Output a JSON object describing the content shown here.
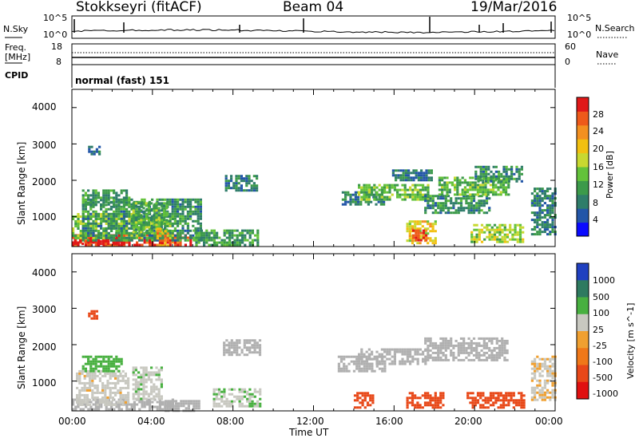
{
  "header": {
    "station": "Stokkseyri (fitACF)",
    "beam": "Beam 04",
    "date": "19/Mar/2016"
  },
  "status_panels": {
    "nsky_label": "N.Sky",
    "nsky_ticks": [
      "10^5",
      "10^0"
    ],
    "nsearch_label": "N.Search",
    "nsearch_ticks": [
      "10^5",
      "10^0"
    ],
    "freq_label_line1": "Freq.",
    "freq_label_line2": "[MHz]",
    "freq_ticks": [
      "18",
      "8"
    ],
    "nave_label": "Nave",
    "nave_ticks": [
      "60",
      "0"
    ],
    "cpid_label": "CPID",
    "cpid_value": "normal (fast) 151"
  },
  "axes": {
    "ylabel": "Slant Range [km]",
    "xlabel": "Time UT",
    "yticks": [
      "4000",
      "3000",
      "2000",
      "1000"
    ],
    "xticks": [
      "00:00",
      "04:00",
      "08:00",
      "12:00",
      "16:00",
      "20:00",
      "00:00"
    ]
  },
  "colorbars": {
    "power_label": "Power [dB]",
    "power_ticks": [
      "28",
      "24",
      "20",
      "16",
      "12",
      "8",
      "4"
    ],
    "velocity_label": "Velocity [m s^-1]",
    "velocity_ticks": [
      "1000",
      "500",
      "100",
      "25",
      "-25",
      "-100",
      "-500",
      "-1000"
    ]
  },
  "colors": {
    "power_scale": [
      "#0a0aff",
      "#2356a8",
      "#2f7d6a",
      "#3c9a4a",
      "#63c23a",
      "#c8d830",
      "#f2c010",
      "#f39020",
      "#ee5a1a",
      "#e01818"
    ],
    "velocity_scale": [
      "#2040c0",
      "#2e7a60",
      "#48b040",
      "#c8c8c0",
      "#f0a030",
      "#f07818",
      "#e84818",
      "#e01010"
    ],
    "ground_scatter": "#b0b0b0"
  },
  "chart_data": [
    {
      "type": "heatmap",
      "title": "Power",
      "xlabel": "Time UT",
      "ylabel": "Slant Range [km]",
      "xlim": [
        "00:00",
        "24:00"
      ],
      "ylim": [
        180,
        4500
      ],
      "colorbar_label": "Power [dB]",
      "colorbar_range": [
        0,
        30
      ],
      "regions": [
        {
          "t0": 0.0,
          "t1": 5.9,
          "r0": 200,
          "r1": 520,
          "value": 27
        },
        {
          "t0": 0.1,
          "t1": 2.6,
          "r0": 250,
          "r1": 420,
          "value": 29
        },
        {
          "t0": 0.0,
          "t1": 5.0,
          "r0": 400,
          "r1": 1100,
          "value": 14
        },
        {
          "t0": 0.5,
          "t1": 6.4,
          "r0": 380,
          "r1": 1500,
          "value": 9
        },
        {
          "t0": 0.5,
          "t1": 2.8,
          "r0": 1300,
          "r1": 1750,
          "value": 10
        },
        {
          "t0": 0.8,
          "t1": 1.4,
          "r0": 2700,
          "r1": 2950,
          "value": 7
        },
        {
          "t0": 3.0,
          "t1": 4.7,
          "r0": 600,
          "r1": 1400,
          "value": 12
        },
        {
          "t0": 4.2,
          "t1": 4.8,
          "r0": 200,
          "r1": 700,
          "value": 22
        },
        {
          "t0": 6.0,
          "t1": 9.2,
          "r0": 200,
          "r1": 650,
          "value": 10
        },
        {
          "t0": 7.6,
          "t1": 9.2,
          "r0": 1750,
          "r1": 2150,
          "value": 8
        },
        {
          "t0": 13.4,
          "t1": 15.5,
          "r0": 1350,
          "r1": 1700,
          "value": 8
        },
        {
          "t0": 14.2,
          "t1": 17.7,
          "r0": 1450,
          "r1": 1900,
          "value": 13
        },
        {
          "t0": 15.9,
          "t1": 17.9,
          "r0": 2000,
          "r1": 2300,
          "value": 7
        },
        {
          "t0": 16.6,
          "t1": 18.1,
          "r0": 250,
          "r1": 900,
          "value": 18
        },
        {
          "t0": 16.9,
          "t1": 17.6,
          "r0": 350,
          "r1": 650,
          "value": 27
        },
        {
          "t0": 17.5,
          "t1": 20.8,
          "r0": 1100,
          "r1": 1600,
          "value": 9
        },
        {
          "t0": 18.2,
          "t1": 21.7,
          "r0": 1600,
          "r1": 2100,
          "value": 12
        },
        {
          "t0": 20.0,
          "t1": 22.3,
          "r0": 2000,
          "r1": 2400,
          "value": 9
        },
        {
          "t0": 19.8,
          "t1": 22.4,
          "r0": 300,
          "r1": 800,
          "value": 15
        },
        {
          "t0": 22.8,
          "t1": 24.0,
          "r0": 500,
          "r1": 1800,
          "value": 8
        }
      ]
    },
    {
      "type": "heatmap",
      "title": "Velocity",
      "xlabel": "Time UT",
      "ylabel": "Slant Range [km]",
      "xlim": [
        "00:00",
        "24:00"
      ],
      "ylim": [
        180,
        4500
      ],
      "colorbar_label": "Velocity [m s^-1]",
      "colorbar_range": [
        -1000,
        1000
      ],
      "regions": [
        {
          "t0": 0.0,
          "t1": 5.0,
          "r0": 200,
          "r1": 520,
          "value": 0,
          "ground_scatter": true
        },
        {
          "t0": 0.2,
          "t1": 2.8,
          "r0": 350,
          "r1": 1300,
          "value": 60
        },
        {
          "t0": 0.5,
          "t1": 2.5,
          "r0": 1300,
          "r1": 1700,
          "value": 140
        },
        {
          "t0": 0.8,
          "t1": 1.3,
          "r0": 2700,
          "r1": 2950,
          "value": -150
        },
        {
          "t0": 3.0,
          "t1": 4.5,
          "r0": 500,
          "r1": 1400,
          "value": 70
        },
        {
          "t0": 4.6,
          "t1": 6.3,
          "r0": 200,
          "r1": 480,
          "value": 0,
          "ground_scatter": true
        },
        {
          "t0": 7.5,
          "t1": 9.3,
          "r0": 1750,
          "r1": 2150,
          "value": 0,
          "ground_scatter": true
        },
        {
          "t0": 7.0,
          "t1": 9.3,
          "r0": 300,
          "r1": 800,
          "value": 80
        },
        {
          "t0": 13.2,
          "t1": 15.5,
          "r0": 1300,
          "r1": 1700,
          "value": 0,
          "ground_scatter": true
        },
        {
          "t0": 14.2,
          "t1": 17.6,
          "r0": 1450,
          "r1": 1900,
          "value": 0,
          "ground_scatter": true
        },
        {
          "t0": 14.0,
          "t1": 15.0,
          "r0": 300,
          "r1": 700,
          "value": -160
        },
        {
          "t0": 16.6,
          "t1": 18.4,
          "r0": 250,
          "r1": 700,
          "value": -180
        },
        {
          "t0": 17.5,
          "t1": 21.6,
          "r0": 1600,
          "r1": 2200,
          "value": 0,
          "ground_scatter": true
        },
        {
          "t0": 19.6,
          "t1": 22.4,
          "r0": 300,
          "r1": 700,
          "value": -190
        },
        {
          "t0": 22.8,
          "t1": 24.0,
          "r0": 500,
          "r1": 1700,
          "value": 40
        }
      ]
    }
  ]
}
